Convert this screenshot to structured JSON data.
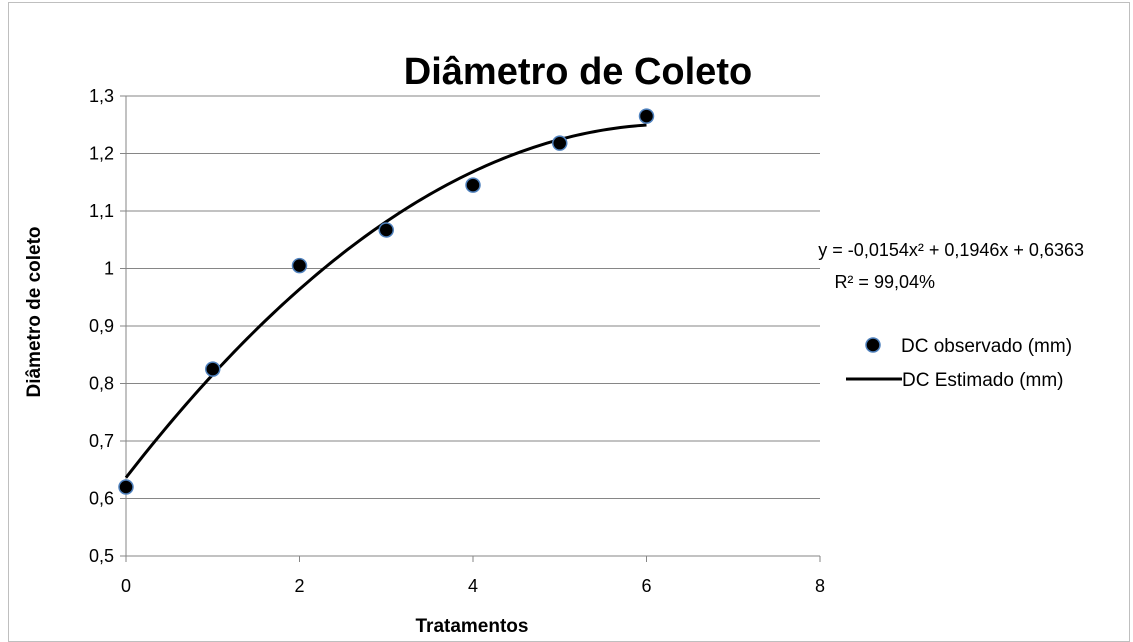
{
  "chart_data": {
    "type": "scatter",
    "title": "Diâmetro de Coleto",
    "xlabel": "Tratamentos",
    "ylabel": "Diâmetro de coleto",
    "xlim": [
      0,
      8
    ],
    "ylim": [
      0.5,
      1.3
    ],
    "x_ticks": [
      "0",
      "2",
      "4",
      "6",
      "8"
    ],
    "y_ticks": [
      "0,5",
      "0,6",
      "0,7",
      "0,8",
      "0,9",
      "1",
      "1,1",
      "1,2",
      "1,3"
    ],
    "grid": "horizontal",
    "legend_position": "right",
    "series": [
      {
        "name": "DC observado (mm)",
        "kind": "scatter",
        "x": [
          0,
          1,
          2,
          3,
          4,
          5,
          6
        ],
        "y": [
          0.62,
          0.825,
          1.005,
          1.067,
          1.145,
          1.218,
          1.265
        ]
      },
      {
        "name": "DC Estimado (mm)",
        "kind": "line",
        "coefficients": {
          "a": -0.0154,
          "b": 0.1946,
          "c": 0.6363
        },
        "x_range": [
          0,
          6
        ]
      }
    ],
    "annotations": {
      "equation": "y = -0,0154x² + 0,1946x + 0,6363",
      "r2": "R² = 99,04%"
    },
    "colors": {
      "marker_fill": "#000000",
      "marker_stroke": "#4f81bd",
      "line": "#000000",
      "grid": "#868686",
      "frame": "#bfbfbf"
    }
  }
}
